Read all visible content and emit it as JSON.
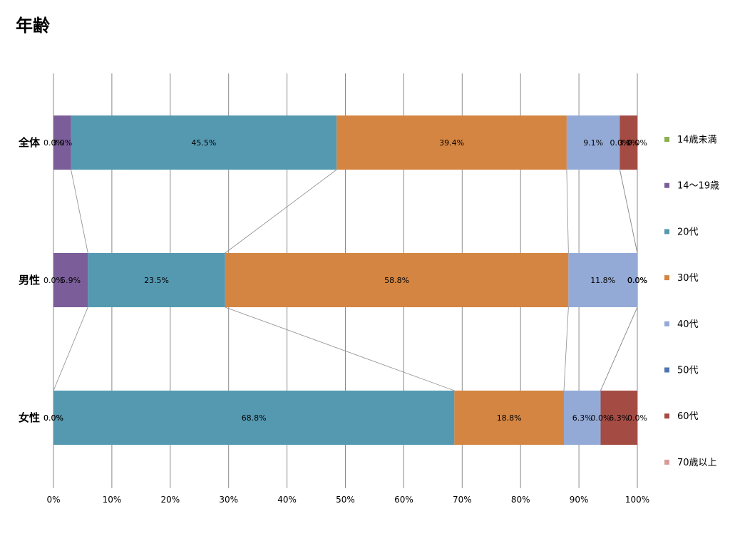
{
  "chart_data": {
    "type": "bar",
    "stacked": true,
    "orientation": "horizontal",
    "percent_stacked": true,
    "title": "年齢",
    "categories": [
      "全体",
      "男性",
      "女性"
    ],
    "series": [
      {
        "name": "14歳未満",
        "color": "#8bb04f",
        "values": [
          0.0,
          0.0,
          0.0
        ]
      },
      {
        "name": "14〜19歳",
        "color": "#7b5d99",
        "values": [
          3.0,
          5.9,
          0.0
        ]
      },
      {
        "name": "20代",
        "color": "#5599b1",
        "values": [
          45.5,
          23.5,
          68.8
        ]
      },
      {
        "name": "30代",
        "color": "#d48542",
        "values": [
          39.4,
          58.8,
          18.8
        ]
      },
      {
        "name": "40代",
        "color": "#94aad6",
        "values": [
          9.1,
          11.8,
          6.3
        ]
      },
      {
        "name": "50代",
        "color": "#4f77ac",
        "values": [
          0.0,
          0.0,
          0.0
        ]
      },
      {
        "name": "60代",
        "color": "#a44c44",
        "values": [
          3.0,
          0.0,
          6.3
        ]
      },
      {
        "name": "70歳以上",
        "color": "#d89b9a",
        "values": [
          0.0,
          0.0,
          0.0
        ]
      }
    ],
    "data_labels": [
      [
        "0.0%",
        "3.0%",
        "45.5%",
        "39.4%",
        "9.1%",
        "0.0%",
        "3.0%",
        "0.0%"
      ],
      [
        "0.0%",
        "5.9%",
        "23.5%",
        "58.8%",
        "11.8%",
        "0.0%",
        "0.0%",
        "0.0%"
      ],
      [
        "0.0%",
        "0.0%",
        "68.8%",
        "18.8%",
        "6.3%",
        "0.0%",
        "6.3%",
        "0.0%"
      ]
    ],
    "x_ticks": [
      "0%",
      "10%",
      "20%",
      "30%",
      "40%",
      "50%",
      "60%",
      "70%",
      "80%",
      "90%",
      "100%"
    ],
    "xlim": [
      0,
      100
    ],
    "grid": true,
    "legend_position": "right",
    "series_lines": true
  }
}
